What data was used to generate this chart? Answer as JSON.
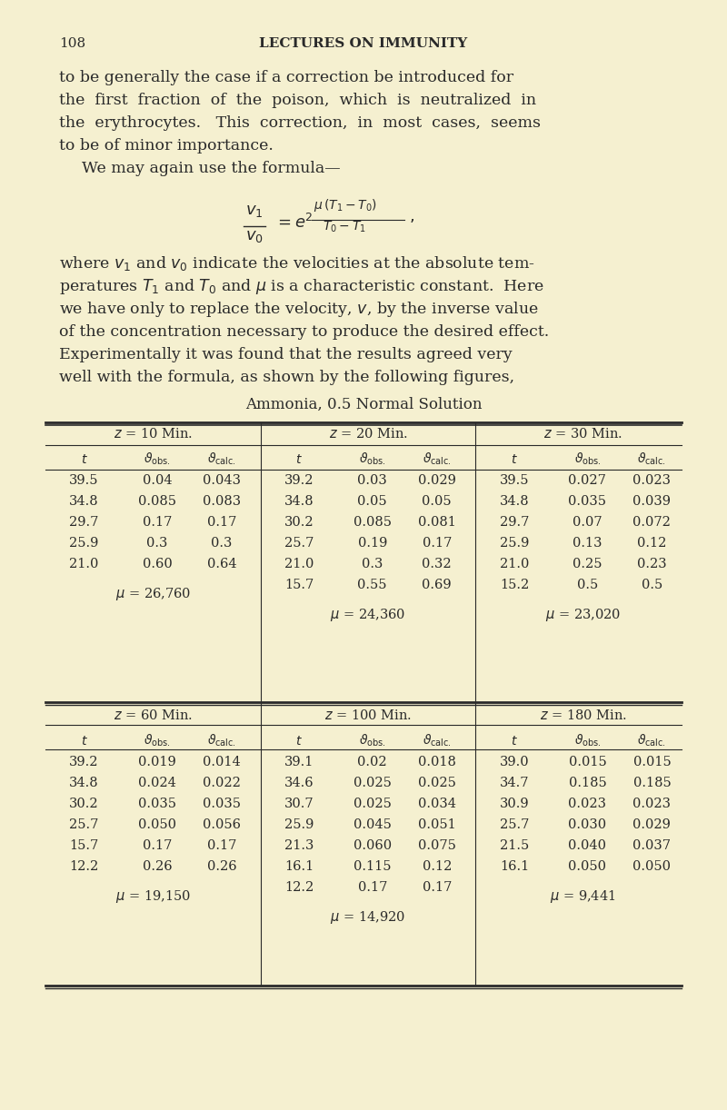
{
  "bg_color": "#f5f0d0",
  "page_num": "108",
  "header": "LECTURES ON IMMUNITY",
  "text1": "to be generally the case if a correction be introduced for",
  "text2": "the  first  fraction  of  the  poison,  which  is  neutralized  in",
  "text3": "the  erythrocytes.   This  correction,  in  most  cases,  seems",
  "text4": "to be of minor importance.",
  "text5": "We may again use the formula—",
  "text_after1": "where $v_1$ and $v_0$ indicate the velocities at the absolute tem-",
  "text_after2": "peratures $T_1$ and $T_0$ and $\\mu$ is a characteristic constant.  Here",
  "text_after3": "we have only to replace the velocity, $v$, by the inverse value",
  "text_after4": "of the concentration necessary to produce the desired effect.",
  "text_after5": "Experimentally it was found that the results agreed very",
  "text_after6": "well with the formula, as shown by the following figures,",
  "table_title": "Ammonia, 0.5 Normal Solution",
  "sections": [
    {
      "header": "$z$ = 10 Min.",
      "rows": [
        [
          "$t$",
          "$\\vartheta_{\\mathrm{obs.}}$",
          "$\\vartheta_{\\mathrm{calc.}}$"
        ],
        [
          "39.5",
          "0.04",
          "0.043"
        ],
        [
          "34.8",
          "0.085",
          "0.083"
        ],
        [
          "29.7",
          "0.17",
          "0.17"
        ],
        [
          "25.9",
          "0.3",
          "0.3"
        ],
        [
          "21.0",
          "0.60",
          "0.64"
        ]
      ],
      "mu": "$\\mu$ = 26,760"
    },
    {
      "header": "$z$ = 20 Min.",
      "rows": [
        [
          "$t$",
          "$\\vartheta_{\\mathrm{obs.}}$",
          "$\\vartheta_{\\mathrm{calc.}}$"
        ],
        [
          "39.2",
          "0.03",
          "0.029"
        ],
        [
          "34.8",
          "0.05",
          "0.05"
        ],
        [
          "30.2",
          "0.085",
          "0.081"
        ],
        [
          "25.7",
          "0.19",
          "0.17"
        ],
        [
          "21.0",
          "0.3",
          "0.32"
        ],
        [
          "15.7",
          "0.55",
          "0.69"
        ]
      ],
      "mu": "$\\mu$ = 24,360"
    },
    {
      "header": "$z$ = 30 Min.",
      "rows": [
        [
          "$t$",
          "$\\vartheta_{\\mathrm{obs.}}$",
          "$\\vartheta_{\\mathrm{calc.}}$"
        ],
        [
          "39.5",
          "0.027",
          "0.023"
        ],
        [
          "34.8",
          "0.035",
          "0.039"
        ],
        [
          "29.7",
          "0.07",
          "0.072"
        ],
        [
          "25.9",
          "0.13",
          "0.12"
        ],
        [
          "21.0",
          "0.25",
          "0.23"
        ],
        [
          "15.2",
          "0.5",
          "0.5"
        ]
      ],
      "mu": "$\\mu$ = 23,020"
    },
    {
      "header": "$z$ = 60 Min.",
      "rows": [
        [
          "$t$",
          "$\\vartheta_{\\mathrm{obs.}}$",
          "$\\vartheta_{\\mathrm{calc.}}$"
        ],
        [
          "39.2",
          "0.019",
          "0.014"
        ],
        [
          "34.8",
          "0.024",
          "0.022"
        ],
        [
          "30.2",
          "0.035",
          "0.035"
        ],
        [
          "25.7",
          "0.050",
          "0.056"
        ],
        [
          "15.7",
          "0.17",
          "0.17"
        ],
        [
          "12.2",
          "0.26",
          "0.26"
        ]
      ],
      "mu": "$\\mu$ = 19,150"
    },
    {
      "header": "$z$ = 100 Min.",
      "rows": [
        [
          "$t$",
          "$\\vartheta_{\\mathrm{obs.}}$",
          "$\\vartheta_{\\mathrm{calc.}}$"
        ],
        [
          "39.1",
          "0.02",
          "0.018"
        ],
        [
          "34.6",
          "0.025",
          "0.025"
        ],
        [
          "30.7",
          "0.025",
          "0.034"
        ],
        [
          "25.9",
          "0.045",
          "0.051"
        ],
        [
          "21.3",
          "0.060",
          "0.075"
        ],
        [
          "16.1",
          "0.115",
          "0.12"
        ],
        [
          "12.2",
          "0.17",
          "0.17"
        ]
      ],
      "mu": "$\\mu$ = 14,920"
    },
    {
      "header": "$z$ = 180 Min.",
      "rows": [
        [
          "$t$",
          "$\\vartheta_{\\mathrm{obs.}}$",
          "$\\vartheta_{\\mathrm{calc.}}$"
        ],
        [
          "39.0",
          "0.015",
          "0.015"
        ],
        [
          "34.7",
          "0.185",
          "0.185"
        ],
        [
          "30.9",
          "0.023",
          "0.023"
        ],
        [
          "25.7",
          "0.030",
          "0.029"
        ],
        [
          "21.5",
          "0.040",
          "0.037"
        ],
        [
          "16.1",
          "0.050",
          "0.050"
        ]
      ],
      "mu": "$\\mu$ = 9,441"
    }
  ]
}
